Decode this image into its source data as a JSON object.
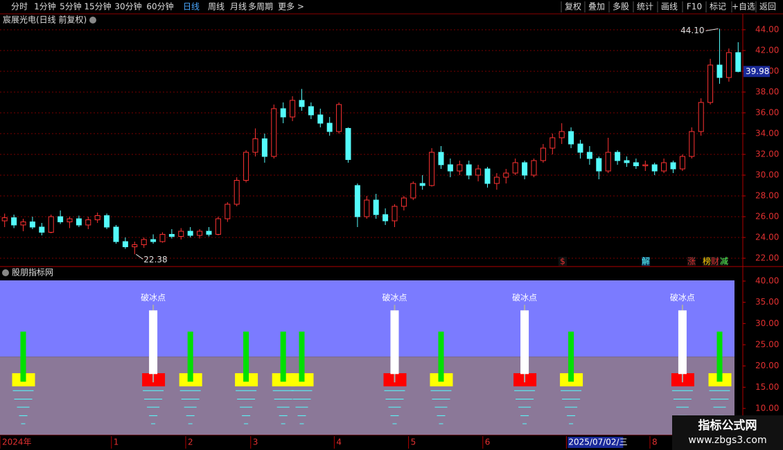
{
  "toolbar": {
    "periods": [
      "分时",
      "1分钟",
      "5分钟",
      "15分钟",
      "30分钟",
      "60分钟",
      "日线",
      "周线",
      "月线",
      "多周期",
      "更多 >"
    ],
    "actions": [
      "复权",
      "叠加",
      "多股",
      "统计",
      "画线",
      "F10",
      "标记",
      "+自选",
      "返回"
    ]
  },
  "watermark": {
    "name": "指标公式网",
    "url": "www.zbgs3.com"
  },
  "chart_data": [
    {
      "type": "candlestick",
      "title": "宸展光电(日线 前复权)",
      "categories": [
        "2024年",
        null,
        null,
        null,
        null,
        null,
        null,
        null,
        null,
        null,
        null,
        null,
        "1",
        null,
        null,
        null,
        null,
        null,
        null,
        null,
        "2",
        null,
        null,
        null,
        null,
        null,
        null,
        "3",
        null,
        null,
        null,
        null,
        null,
        null,
        null,
        null,
        "4",
        null,
        null,
        null,
        null,
        null,
        null,
        null,
        "5",
        null,
        null,
        null,
        null,
        null,
        null,
        null,
        "6",
        null,
        null,
        null,
        null,
        null,
        null,
        null,
        null,
        "2025/07/02/三",
        null,
        null,
        null,
        null,
        null,
        null,
        null,
        null,
        "8",
        null,
        null,
        null,
        null,
        null,
        null,
        null,
        null,
        null
      ],
      "values": [
        [
          25.6,
          26.3,
          25.0,
          25.9
        ],
        [
          25.9,
          26.2,
          24.9,
          25.2
        ],
        [
          25.2,
          25.8,
          24.6,
          25.5
        ],
        [
          25.5,
          26.0,
          24.8,
          25.0
        ],
        [
          25.0,
          25.4,
          24.2,
          24.5
        ],
        [
          24.5,
          26.2,
          24.4,
          26.0
        ],
        [
          26.0,
          26.6,
          25.3,
          25.5
        ],
        [
          25.5,
          26.0,
          24.9,
          25.8
        ],
        [
          25.8,
          26.1,
          25.0,
          25.2
        ],
        [
          25.2,
          26.0,
          24.8,
          25.7
        ],
        [
          25.7,
          26.4,
          25.4,
          26.1
        ],
        [
          26.1,
          26.3,
          24.8,
          25.0
        ],
        [
          25.0,
          25.2,
          23.4,
          23.6
        ],
        [
          23.6,
          24.0,
          22.9,
          23.1
        ],
        [
          23.1,
          23.6,
          22.38,
          23.3
        ],
        [
          23.3,
          24.0,
          23.0,
          23.8
        ],
        [
          23.8,
          24.3,
          23.4,
          23.6
        ],
        [
          23.6,
          24.5,
          23.5,
          24.3
        ],
        [
          24.3,
          24.8,
          23.9,
          24.1
        ],
        [
          24.1,
          24.9,
          23.8,
          24.6
        ],
        [
          24.6,
          25.0,
          24.0,
          24.2
        ],
        [
          24.2,
          24.8,
          23.9,
          24.6
        ],
        [
          24.6,
          25.0,
          24.1,
          24.3
        ],
        [
          24.3,
          26.0,
          24.2,
          25.8
        ],
        [
          25.8,
          27.4,
          25.5,
          27.2
        ],
        [
          27.2,
          29.8,
          27.0,
          29.5
        ],
        [
          29.5,
          32.4,
          29.3,
          32.2
        ],
        [
          32.2,
          34.5,
          31.8,
          33.5
        ],
        [
          33.5,
          34.0,
          31.2,
          31.8
        ],
        [
          31.8,
          36.8,
          31.6,
          36.4
        ],
        [
          36.4,
          37.0,
          35.0,
          35.6
        ],
        [
          35.6,
          37.6,
          35.2,
          37.2
        ],
        [
          37.2,
          38.3,
          36.2,
          36.6
        ],
        [
          36.6,
          37.0,
          35.4,
          35.8
        ],
        [
          35.8,
          36.4,
          34.6,
          35.0
        ],
        [
          35.0,
          35.6,
          33.8,
          34.2
        ],
        [
          34.2,
          37.0,
          34.0,
          36.8
        ],
        [
          34.5,
          34.6,
          31.2,
          31.5
        ],
        [
          29.0,
          29.2,
          25.0,
          26.0
        ],
        [
          26.0,
          28.0,
          25.8,
          27.6
        ],
        [
          27.6,
          28.2,
          25.8,
          26.2
        ],
        [
          26.2,
          26.8,
          25.2,
          25.6
        ],
        [
          25.6,
          27.2,
          25.0,
          27.0
        ],
        [
          27.0,
          28.0,
          26.6,
          27.8
        ],
        [
          27.8,
          29.4,
          27.6,
          29.2
        ],
        [
          29.2,
          30.0,
          28.6,
          29.0
        ],
        [
          29.0,
          32.6,
          28.9,
          32.2
        ],
        [
          32.2,
          32.8,
          30.6,
          31.0
        ],
        [
          31.0,
          31.6,
          29.8,
          30.4
        ],
        [
          30.4,
          31.4,
          30.0,
          31.0
        ],
        [
          31.0,
          31.4,
          29.6,
          30.0
        ],
        [
          30.0,
          31.0,
          29.4,
          30.6
        ],
        [
          30.6,
          30.8,
          28.8,
          29.2
        ],
        [
          29.2,
          30.2,
          28.6,
          29.8
        ],
        [
          29.8,
          30.6,
          29.2,
          30.2
        ],
        [
          30.2,
          31.6,
          30.0,
          31.2
        ],
        [
          31.2,
          31.4,
          29.6,
          30.0
        ],
        [
          30.0,
          31.6,
          29.8,
          31.4
        ],
        [
          31.4,
          33.0,
          31.2,
          32.6
        ],
        [
          32.6,
          34.0,
          32.0,
          33.6
        ],
        [
          33.6,
          35.0,
          33.0,
          34.2
        ],
        [
          34.2,
          34.6,
          32.6,
          33.0
        ],
        [
          33.0,
          33.4,
          31.6,
          32.2
        ],
        [
          32.2,
          32.8,
          31.0,
          31.6
        ],
        [
          31.6,
          31.8,
          29.6,
          30.4
        ],
        [
          30.4,
          33.6,
          30.2,
          32.2
        ],
        [
          32.2,
          32.4,
          31.0,
          31.4
        ],
        [
          31.4,
          31.8,
          30.8,
          31.2
        ],
        [
          31.2,
          31.6,
          30.6,
          30.9
        ],
        [
          30.9,
          31.4,
          30.4,
          31.0
        ],
        [
          31.0,
          31.2,
          30.0,
          30.4
        ],
        [
          30.4,
          31.6,
          30.2,
          31.2
        ],
        [
          31.2,
          31.4,
          30.2,
          30.6
        ],
        [
          30.6,
          32.0,
          30.4,
          31.8
        ],
        [
          31.8,
          34.6,
          31.6,
          34.2
        ],
        [
          34.2,
          37.4,
          33.8,
          37.0
        ],
        [
          37.0,
          41.2,
          36.8,
          40.6
        ],
        [
          40.6,
          44.1,
          38.8,
          39.4
        ],
        [
          39.4,
          42.2,
          39.0,
          41.8
        ],
        [
          41.8,
          42.8,
          39.9,
          39.98
        ]
      ],
      "up_color": "#ff3232",
      "down_color": "#54fcfc",
      "ylim": [
        21.2,
        45.53
      ],
      "yticks": [
        {
          "value": 22,
          "label": "22.00"
        },
        {
          "value": 24,
          "label": "24.00"
        },
        {
          "value": 26,
          "label": "26.00"
        },
        {
          "value": 28,
          "label": "28.00"
        },
        {
          "value": 30,
          "label": "30.00"
        },
        {
          "value": 32,
          "label": "32.00"
        },
        {
          "value": 34,
          "label": "34.00"
        },
        {
          "value": 36,
          "label": "36.00"
        },
        {
          "value": 38,
          "label": "38.00"
        },
        {
          "value": 40,
          "label": "40.00"
        },
        {
          "value": 42,
          "label": "42.00"
        },
        {
          "value": 44,
          "label": "44.00"
        }
      ],
      "grid": true,
      "high_label": {
        "value": 44.1,
        "label": "44.10"
      },
      "low_label": 22.38,
      "last_price": 39.98,
      "event_tags": [
        "$",
        "解",
        "涨",
        "榜",
        "财",
        "减"
      ]
    },
    {
      "type": "indicator",
      "title": "股朋指标网",
      "ylim": [
        3.8,
        43.26
      ],
      "yticks": [
        {
          "value": 10,
          "label": "10.00"
        },
        {
          "value": 15,
          "label": "15.00"
        },
        {
          "value": 20,
          "label": "20.00"
        },
        {
          "value": 25,
          "label": "25.00"
        },
        {
          "value": 30,
          "label": "30.00"
        },
        {
          "value": 35,
          "label": "35.00"
        },
        {
          "value": 40,
          "label": "40.00"
        }
      ],
      "band_split": 22.2,
      "ice_label": "破冰点",
      "ice_x": [
        16,
        42,
        56,
        73
      ],
      "ice_top": 33.1,
      "ice_bottom": 18.1,
      "green_x": [
        2,
        20,
        26,
        30,
        32,
        47,
        61,
        77
      ],
      "green_top": 28.1,
      "green_bottom": 16.3,
      "box_top": 18.3,
      "box_bottom": 15.2,
      "dash_levels": [
        14.2,
        12.2,
        10.3,
        8.3,
        6.4
      ]
    }
  ]
}
